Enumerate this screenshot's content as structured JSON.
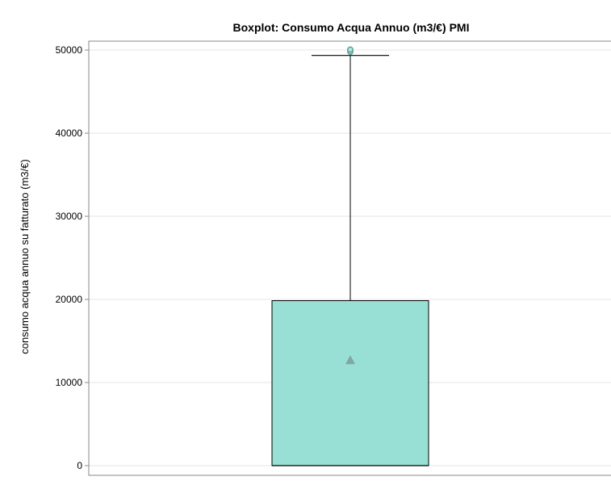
{
  "chart_data": {
    "type": "box",
    "title": "Boxplot: Consumo Acqua Annuo (m3/€) PMI",
    "xlabel": "",
    "ylabel": "consumo acqua annuo su fatturato (m3/€)",
    "ylim": [
      0,
      51000
    ],
    "yticks": [
      0,
      10000,
      20000,
      30000,
      40000,
      50000
    ],
    "ytick_labels": [
      "0",
      "10000",
      "20000",
      "30000",
      "40000",
      "50000"
    ],
    "grid": true,
    "legend": "none",
    "box": {
      "min": 0,
      "q1": 0,
      "median": 0,
      "q3": 19850,
      "whisker_high": 49350,
      "mean": 12700,
      "outliers": [
        49800,
        50050
      ]
    },
    "colors": {
      "box_fill": "#98DFD5",
      "mean_marker": "#7FA8A2",
      "outlier": "#5C9E96",
      "grid": "#E6E6E6",
      "axis": "#8A8A8A"
    }
  }
}
